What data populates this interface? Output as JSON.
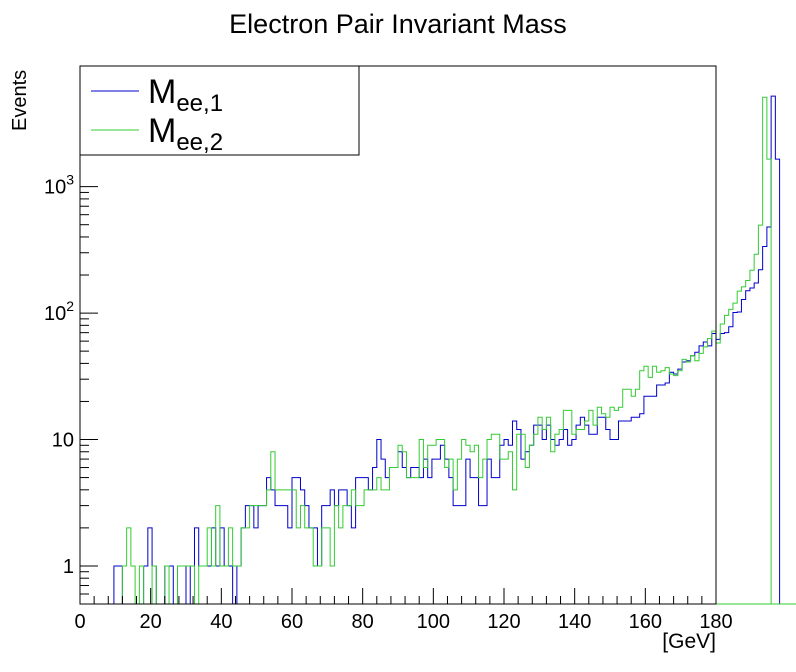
{
  "chart_data": {
    "type": "line",
    "title": "Electron Pair Invariant Mass",
    "xlabel": "[GeV]",
    "ylabel": "Events",
    "xlim": [
      0,
      180
    ],
    "ylim": [
      0.5,
      9000
    ],
    "yscale": "log",
    "grid": false,
    "legend_position": "top-left",
    "x_bin_width": 1.2,
    "x_ticks": [
      "0",
      "20",
      "40",
      "60",
      "80",
      "100",
      "120",
      "140",
      "160",
      "180"
    ],
    "y_ticks": [
      {
        "value": 1,
        "base": "1",
        "exp": ""
      },
      {
        "value": 10,
        "base": "10",
        "exp": ""
      },
      {
        "value": 100,
        "base": "10",
        "exp": "2"
      },
      {
        "value": 1000,
        "base": "10",
        "exp": "3"
      }
    ],
    "series": [
      {
        "name_main": "M",
        "name_sub": "ee,1",
        "color": "#0000cc",
        "x_start": 9.6,
        "values": [
          1,
          1,
          0,
          0,
          0,
          0,
          0,
          1,
          2,
          1,
          0,
          0,
          1,
          1,
          0,
          1,
          1,
          0,
          1,
          2,
          1,
          1,
          1,
          2,
          1,
          2,
          1,
          1,
          0,
          1,
          2,
          3,
          3,
          2,
          3,
          3,
          5,
          4,
          3,
          3,
          3,
          2,
          5,
          5,
          4,
          3,
          2,
          2,
          1,
          3,
          3,
          4,
          3,
          4,
          4,
          3,
          2,
          5,
          5,
          5,
          4,
          6,
          10,
          7,
          5,
          6,
          6,
          8,
          6,
          5,
          6,
          6,
          5,
          7,
          5,
          7,
          7,
          9,
          7,
          5,
          3,
          3,
          3,
          7,
          5,
          5,
          3,
          3,
          7,
          5,
          5,
          9,
          10,
          9,
          14,
          12,
          7,
          8,
          9,
          13,
          13,
          10,
          13,
          10,
          9,
          10,
          12,
          9,
          10,
          13,
          15,
          13,
          11,
          11,
          15,
          15,
          12,
          10,
          10,
          14,
          14,
          14,
          15,
          15,
          16,
          22,
          22,
          22,
          27,
          27,
          28,
          34,
          33,
          36,
          41,
          42,
          46,
          49,
          55,
          59,
          55,
          69,
          62,
          69,
          70,
          78,
          101,
          102,
          128,
          150,
          158,
          173,
          220,
          336,
          479,
          5200,
          1650,
          0,
          0,
          0,
          0,
          0,
          0,
          0,
          0,
          0,
          0,
          0,
          0,
          0,
          0,
          0,
          0,
          0,
          0,
          0,
          0,
          0,
          0,
          0,
          0,
          0
        ]
      },
      {
        "name_main": "M",
        "name_sub": "ee,2",
        "color": "#33cc33",
        "x_start": 9.6,
        "values": [
          0,
          0,
          1,
          2,
          1,
          0,
          1,
          0,
          0,
          1,
          0,
          0,
          1,
          0,
          0,
          1,
          1,
          1,
          1,
          0,
          1,
          1,
          2,
          1,
          3,
          1,
          1,
          2,
          1,
          1,
          2,
          2,
          3,
          3,
          3,
          3,
          4,
          8,
          4,
          4,
          4,
          4,
          4,
          2,
          3,
          2,
          2,
          1,
          1,
          2,
          2,
          1,
          3,
          2,
          3,
          3,
          4,
          3,
          3,
          4,
          4,
          4,
          5,
          4,
          4,
          6,
          6,
          9,
          8,
          5,
          5,
          5,
          10,
          6,
          9,
          9,
          10,
          10,
          6,
          7,
          4,
          7,
          10,
          9,
          8,
          9,
          5,
          7,
          10,
          11,
          11,
          7,
          7,
          8,
          4,
          11,
          11,
          6,
          9,
          11,
          15,
          12,
          15,
          8,
          11,
          12,
          17,
          17,
          11,
          12,
          12,
          14,
          17,
          13,
          18,
          16,
          15,
          18,
          17,
          18,
          25,
          25,
          22,
          25,
          35,
          38,
          31,
          38,
          34,
          35,
          37,
          33,
          32,
          35,
          43,
          41,
          46,
          42,
          48,
          54,
          63,
          72,
          58,
          82,
          96,
          107,
          120,
          149,
          161,
          181,
          218,
          292,
          496,
          5100,
          1650,
          0,
          0,
          0,
          0,
          0,
          0,
          0,
          0,
          0,
          0,
          0,
          0,
          0,
          0,
          0,
          0,
          0,
          0,
          0,
          0,
          0,
          0,
          0,
          0,
          0
        ]
      }
    ]
  }
}
